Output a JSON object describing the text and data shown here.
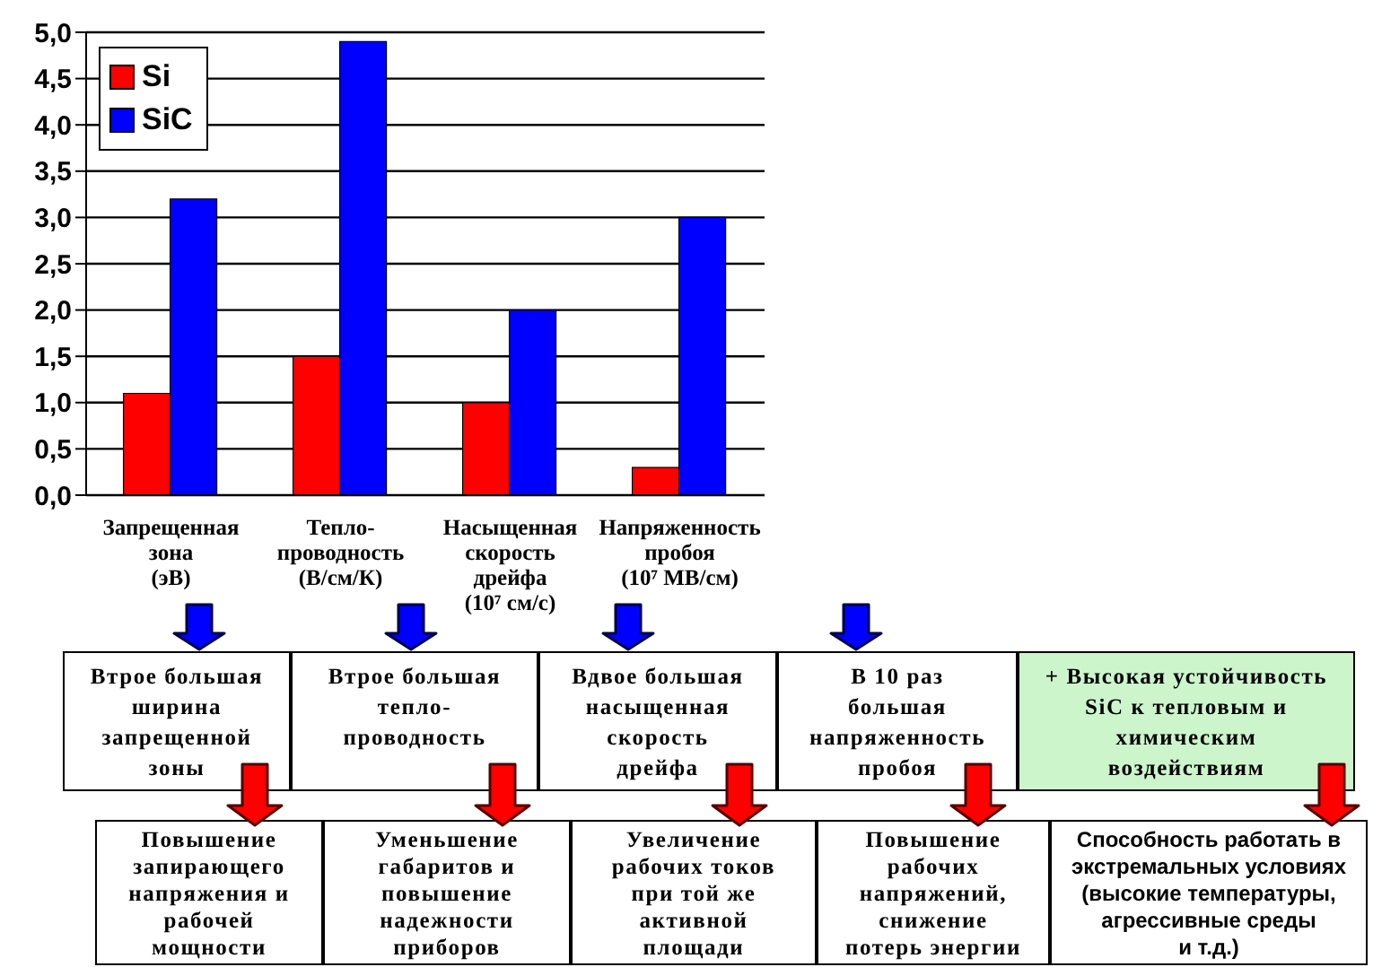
{
  "chart_data": {
    "type": "bar",
    "categories": [
      "Запрещенная\nзона\n(эВ)",
      "Тепло-\nпроводность\n(В/см/К)",
      "Насыщенная\nскорость\nдрейфа\n(10⁷ см/с)",
      "Напряженность\nпробоя\n(10⁷ МВ/см)"
    ],
    "series": [
      {
        "name": "Si",
        "color": "#ff0000",
        "values": [
          1.1,
          1.5,
          1.0,
          0.3
        ]
      },
      {
        "name": "SiC",
        "color": "#0000ff",
        "values": [
          3.2,
          4.9,
          2.0,
          3.0
        ]
      }
    ],
    "ylim": [
      0,
      5
    ],
    "yticks": [
      {
        "value": 0,
        "label": "0,0"
      },
      {
        "value": 0.5,
        "label": "0,5"
      },
      {
        "value": 1,
        "label": "1,0"
      },
      {
        "value": 1.5,
        "label": "1,5"
      },
      {
        "value": 2,
        "label": "2,0"
      },
      {
        "value": 2.5,
        "label": "2,5"
      },
      {
        "value": 3,
        "label": "3,0"
      },
      {
        "value": 3.5,
        "label": "3,5"
      },
      {
        "value": 4,
        "label": "4,0"
      },
      {
        "value": 4.5,
        "label": "4,5"
      },
      {
        "value": 5,
        "label": "5,0"
      }
    ],
    "grid": "y",
    "legend": "top left",
    "annotations": [
      "Втрое большая\nширина\nзапрещенной\nзоны",
      "Втрое большая\nтепло-\nпроводность",
      "Вдвое большая\nнасыщенная\nскорость\nдрейфа",
      "В 10 раз\nбольшая\nнапряженность\nпробоя",
      "+ Высокая устойчивость\nSiC к тепловым и\nхимическим\nвоздействиям",
      "Повышение\nзапирающего\nнапряжения и\nрабочей\nмощности",
      "Уменьшение\nгабаритов и\nповышение\nнадежности\nприборов",
      "Увеличение\nрабочих токов\nпри той же\nактивной\nплощади",
      "Повышение\nрабочих\nнапряжений,\nснижение\nпотерь энергии",
      "Способность работать в\nэкстремальных условиях\n(высокие температуры,\nагрессивные среды\nи т.д.)"
    ]
  }
}
